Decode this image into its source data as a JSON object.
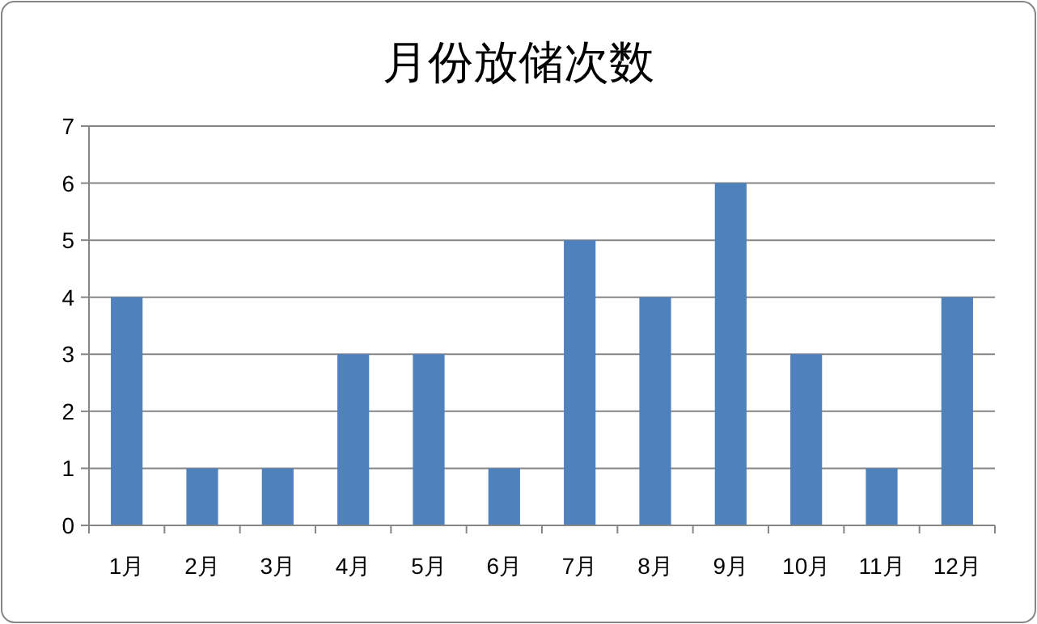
{
  "chart_data": {
    "type": "bar",
    "title": "月份放储次数",
    "categories": [
      "1月",
      "2月",
      "3月",
      "4月",
      "5月",
      "6月",
      "7月",
      "8月",
      "9月",
      "10月",
      "11月",
      "12月"
    ],
    "values": [
      4,
      1,
      1,
      3,
      3,
      1,
      5,
      4,
      6,
      3,
      1,
      4
    ],
    "color": "#4f81bd",
    "ylim": [
      0,
      7
    ],
    "yticks": [
      0,
      1,
      2,
      3,
      4,
      5,
      6,
      7
    ],
    "grid": "y"
  }
}
